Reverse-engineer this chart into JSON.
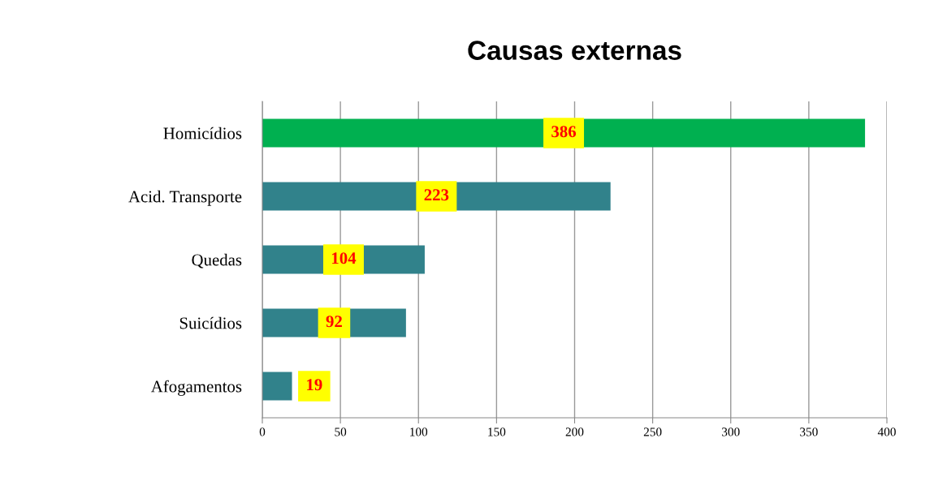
{
  "chart_data": {
    "type": "bar",
    "orientation": "horizontal",
    "title": "Causas externas",
    "categories": [
      "Homicídios",
      "Acid. Transporte",
      "Quedas",
      "Suicídios",
      "Afogamentos"
    ],
    "values": [
      386,
      223,
      104,
      92,
      19
    ],
    "colors": [
      "#00b050",
      "#31828b",
      "#31828b",
      "#31828b",
      "#31828b"
    ],
    "xlim": [
      0,
      400
    ],
    "xticks": [
      0,
      50,
      100,
      150,
      200,
      250,
      300,
      350,
      400
    ],
    "grid": "x",
    "data_labels": true
  }
}
